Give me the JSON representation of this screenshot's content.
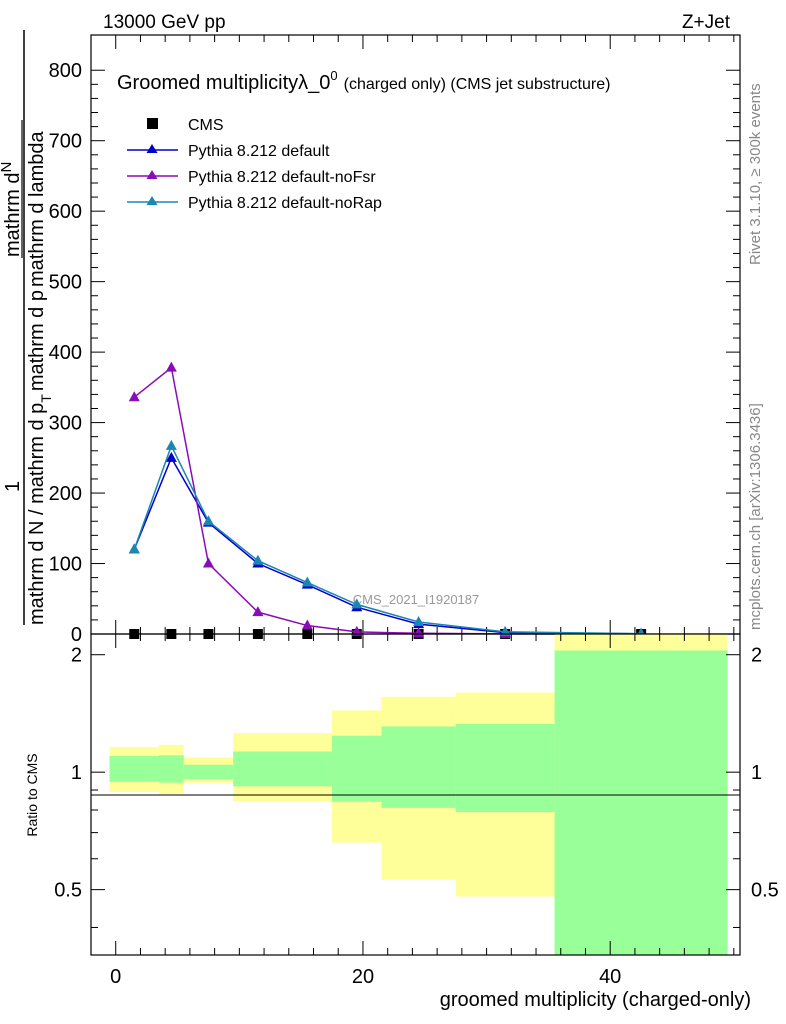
{
  "header": {
    "energy": "13000 GeV pp",
    "process": "Z+Jet"
  },
  "side_labels": {
    "rivet": "Rivet 3.1.10, ≥ 300k events",
    "mcplots": "mcplots.cern.ch [arXiv:1306.3436]"
  },
  "chart_data": [
    {
      "type": "line",
      "title_main": "Groomed multiplicityλ_0",
      "title_sup": "0",
      "title_note": "(charged only) (CMS jet substructure)",
      "watermark": "CMS_2021_I1920187",
      "ylabel_line1": "1",
      "ylabel_frac_num": "mathrm d",
      "ylabel_frac_N": "N",
      "ylabel_line3": "mathrm d N / mathrm d p",
      "ylabel_T": "T",
      "ylabel_tail": "mathrm d p",
      "ylabel_tail2": "mathrm d lambda",
      "ylim": [
        0,
        850
      ],
      "xlim": [
        -2,
        50.5
      ],
      "yticks": [
        0,
        100,
        200,
        300,
        400,
        500,
        600,
        700,
        800
      ],
      "ytick_labels": [
        "0",
        "100",
        "200",
        "300",
        "400",
        "500",
        "600",
        "700",
        "800"
      ],
      "legend": [
        "CMS",
        "Pythia 8.212 default",
        "Pythia 8.212 default-noFsr",
        "Pythia 8.212 default-noRap"
      ],
      "series": [
        {
          "name": "CMS",
          "color": "#000000",
          "marker": "square",
          "x": [
            1.5,
            4.5,
            7.5,
            11.5,
            15.5,
            19.5,
            24.5,
            31.5,
            42.5
          ],
          "y": [
            0,
            0,
            0,
            0,
            0,
            0,
            0,
            0,
            0
          ]
        },
        {
          "name": "Pythia 8.212 default",
          "color": "#0000cc",
          "marker": "triangle",
          "x": [
            1.5,
            4.5,
            7.5,
            11.5,
            15.5,
            19.5,
            24.5,
            31.5,
            42.5
          ],
          "y": [
            120,
            250,
            158,
            100,
            70,
            38,
            14,
            2,
            0.3
          ]
        },
        {
          "name": "Pythia 8.212 default-noFsr",
          "color": "#8a0cb8",
          "marker": "triangle",
          "x": [
            1.5,
            4.5,
            7.5,
            11.5,
            15.5,
            19.5,
            24.5,
            31.5,
            42.5
          ],
          "y": [
            336,
            378,
            100,
            31,
            12,
            3,
            1,
            0.2,
            0
          ]
        },
        {
          "name": "Pythia 8.212 default-noRap",
          "color": "#1a86b4",
          "marker": "triangle",
          "x": [
            1.5,
            4.5,
            7.5,
            11.5,
            15.5,
            19.5,
            24.5,
            31.5,
            42.5
          ],
          "y": [
            120,
            267,
            160,
            104,
            73,
            42,
            17,
            3,
            0.5
          ]
        }
      ]
    },
    {
      "type": "area",
      "ylabel": "Ratio to CMS",
      "xlabel": "groomed multiplicity (charged-only)",
      "ylim": [
        0.34,
        2.26
      ],
      "xlim": [
        -2,
        50.5
      ],
      "yticks": [
        0.5,
        1,
        2
      ],
      "ytick_labels": [
        "0.5",
        "1",
        "2"
      ],
      "xticks": [
        0,
        20,
        40
      ],
      "xtick_labels": [
        "0",
        "20",
        "40"
      ],
      "band_colors": {
        "stat": "#99ff99",
        "total": "#ffff99"
      },
      "bins": [
        {
          "lo": -0.5,
          "hi": 3.5,
          "stat": [
            0.945,
            1.1
          ],
          "total": [
            0.89,
            1.16
          ]
        },
        {
          "lo": 3.5,
          "hi": 5.5,
          "stat": [
            0.94,
            1.105
          ],
          "total": [
            0.88,
            1.175
          ]
        },
        {
          "lo": 5.5,
          "hi": 9.5,
          "stat": [
            0.96,
            1.045
          ],
          "total": [
            0.94,
            1.09
          ]
        },
        {
          "lo": 9.5,
          "hi": 17.5,
          "stat": [
            0.92,
            1.13
          ],
          "total": [
            0.84,
            1.26
          ]
        },
        {
          "lo": 17.5,
          "hi": 21.5,
          "stat": [
            0.84,
            1.24
          ],
          "total": [
            0.66,
            1.44
          ]
        },
        {
          "lo": 21.5,
          "hi": 27.5,
          "stat": [
            0.81,
            1.31
          ],
          "total": [
            0.53,
            1.56
          ]
        },
        {
          "lo": 27.5,
          "hi": 35.5,
          "stat": [
            0.79,
            1.33
          ],
          "total": [
            0.48,
            1.6
          ]
        },
        {
          "lo": 35.5,
          "hi": 49.5,
          "stat": [
            0.34,
            2.05
          ],
          "total": [
            0.34,
            2.26
          ]
        }
      ]
    }
  ]
}
